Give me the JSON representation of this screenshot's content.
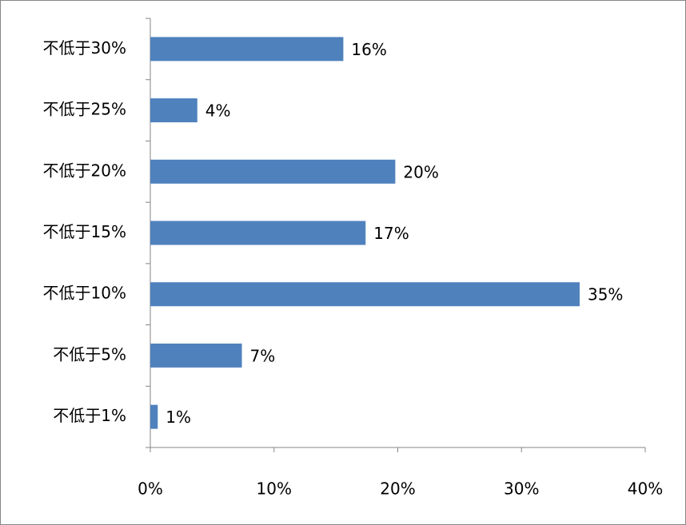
{
  "chart_data": {
    "type": "barh",
    "categories": [
      "不低于30%",
      "不低于25%",
      "不低于20%",
      "不低于15%",
      "不低于10%",
      "不低于5%",
      "不低于1%"
    ],
    "values": [
      15.6,
      3.8,
      19.8,
      17.4,
      34.7,
      7.4,
      0.6
    ],
    "value_labels": [
      "16%",
      "4%",
      "20%",
      "17%",
      "35%",
      "7%",
      "1%"
    ],
    "color": "#4f81bd",
    "xlim": [
      0,
      40
    ],
    "xticks": [
      {
        "value": 0,
        "label": "0%"
      },
      {
        "value": 10,
        "label": "10%"
      },
      {
        "value": 20,
        "label": "20%"
      },
      {
        "value": 30,
        "label": "30%"
      },
      {
        "value": 40,
        "label": "40%"
      }
    ],
    "grid": false
  }
}
